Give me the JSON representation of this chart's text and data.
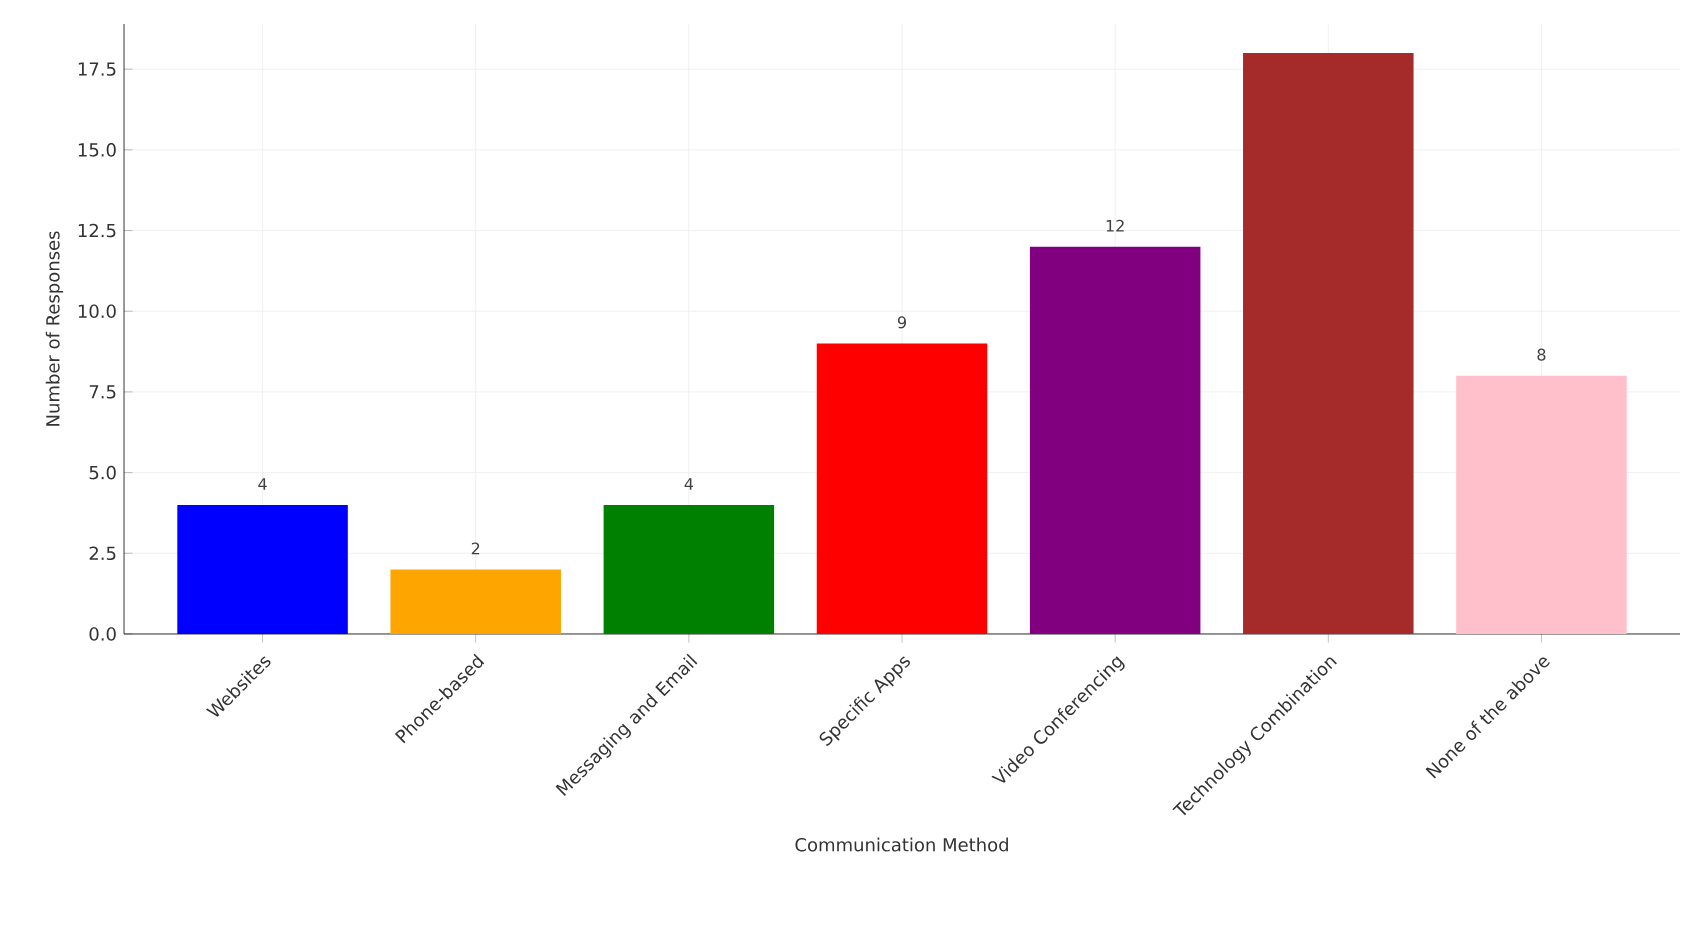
{
  "chart_data": {
    "type": "bar",
    "xlabel": "Communication Method",
    "ylabel": "Number of Responses",
    "categories": [
      "Websites",
      "Phone-based",
      "Messaging and Email",
      "Specific Apps",
      "Video Conferencing",
      "Technology Combination",
      "None of the above"
    ],
    "values": [
      4,
      2,
      4,
      9,
      12,
      18,
      8
    ],
    "colors": [
      "#0000ff",
      "#ffa500",
      "#008000",
      "#ff0000",
      "#800080",
      "#a52a2a",
      "#ffc0cb"
    ],
    "value_labels": [
      "4",
      "2",
      "4",
      "9",
      "12",
      null,
      "8"
    ],
    "ylim": [
      0,
      18.9
    ],
    "yticks": [
      {
        "value": 0,
        "label": "0.0"
      },
      {
        "value": 2.5,
        "label": "2.5"
      },
      {
        "value": 5,
        "label": "5.0"
      },
      {
        "value": 7.5,
        "label": "7.5"
      },
      {
        "value": 10,
        "label": "10.0"
      },
      {
        "value": 12.5,
        "label": "12.5"
      },
      {
        "value": 15,
        "label": "15.0"
      },
      {
        "value": 17.5,
        "label": "17.5"
      }
    ],
    "grid": true
  }
}
